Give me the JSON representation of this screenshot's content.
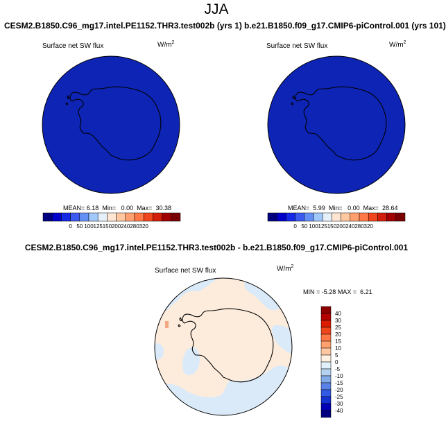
{
  "title": "JJA",
  "panels": [
    {
      "case": "CESM2.B1850.C96_mg17.intel.PE1152.THR3.test002b (yrs 1)",
      "variable": "Surface net SW flux",
      "units_base": "W/m",
      "units_exp": "2",
      "mean_label": "MEAN=",
      "mean": "6.18",
      "min_label": "Min=",
      "min": "0.00",
      "max_label": "Max=",
      "max": "30.38"
    },
    {
      "case": "b.e21.B1850.f09_g17.CMIP6-piControl.001 (yrs 101)",
      "variable": "Surface net SW flux",
      "units_base": "W/m",
      "units_exp": "2",
      "mean_label": "MEAN=",
      "mean": "5.99",
      "min_label": "Min=",
      "min": "0.00",
      "max_label": "Max=",
      "max": "28.64"
    }
  ],
  "difference": {
    "title": "CESM2.B1850.C96_mg17.intel.PE1152.THR3.test002b - b.e21.B1850.f09_g17.CMIP6-piControl.001",
    "variable": "Surface net SW flux",
    "units_base": "W/m",
    "units_exp": "2",
    "min_label": "MIN =",
    "min": "-5.28",
    "max_label": "MAX =",
    "max": "6.21"
  },
  "colorbar_main": {
    "labels": [
      "0",
      "50",
      "100",
      "125",
      "150",
      "200",
      "240",
      "280",
      "320"
    ],
    "colors": [
      "#00007f",
      "#0000c8",
      "#1428e6",
      "#3c5af0",
      "#6490f5",
      "#a0c8fa",
      "#e6f0fa",
      "#ffe6d2",
      "#ffc8a0",
      "#ffa06e",
      "#ff7846",
      "#f0461e",
      "#d21e0a",
      "#a00000",
      "#780000"
    ]
  },
  "colorbar_diff": {
    "labels": [
      "40",
      "30",
      "25",
      "20",
      "15",
      "10",
      "5",
      "0",
      "-5",
      "-10",
      "-15",
      "-20",
      "-25",
      "-30",
      "-40"
    ],
    "colors": [
      "#8c0000",
      "#b40000",
      "#dc1e00",
      "#f0461e",
      "#ff7846",
      "#ffa06e",
      "#ffc8a0",
      "#fff0e1",
      "#e1f0fa",
      "#b4d2f0",
      "#82aae6",
      "#5a82e6",
      "#325ae6",
      "#1432d2",
      "#0000b4",
      "#00007f"
    ]
  },
  "map_colors": {
    "ocean_main": "#0d24b4",
    "diff_pos": "#fdecdc",
    "diff_neg": "#dbeaf8",
    "diff_hot": "#f4a882"
  }
}
